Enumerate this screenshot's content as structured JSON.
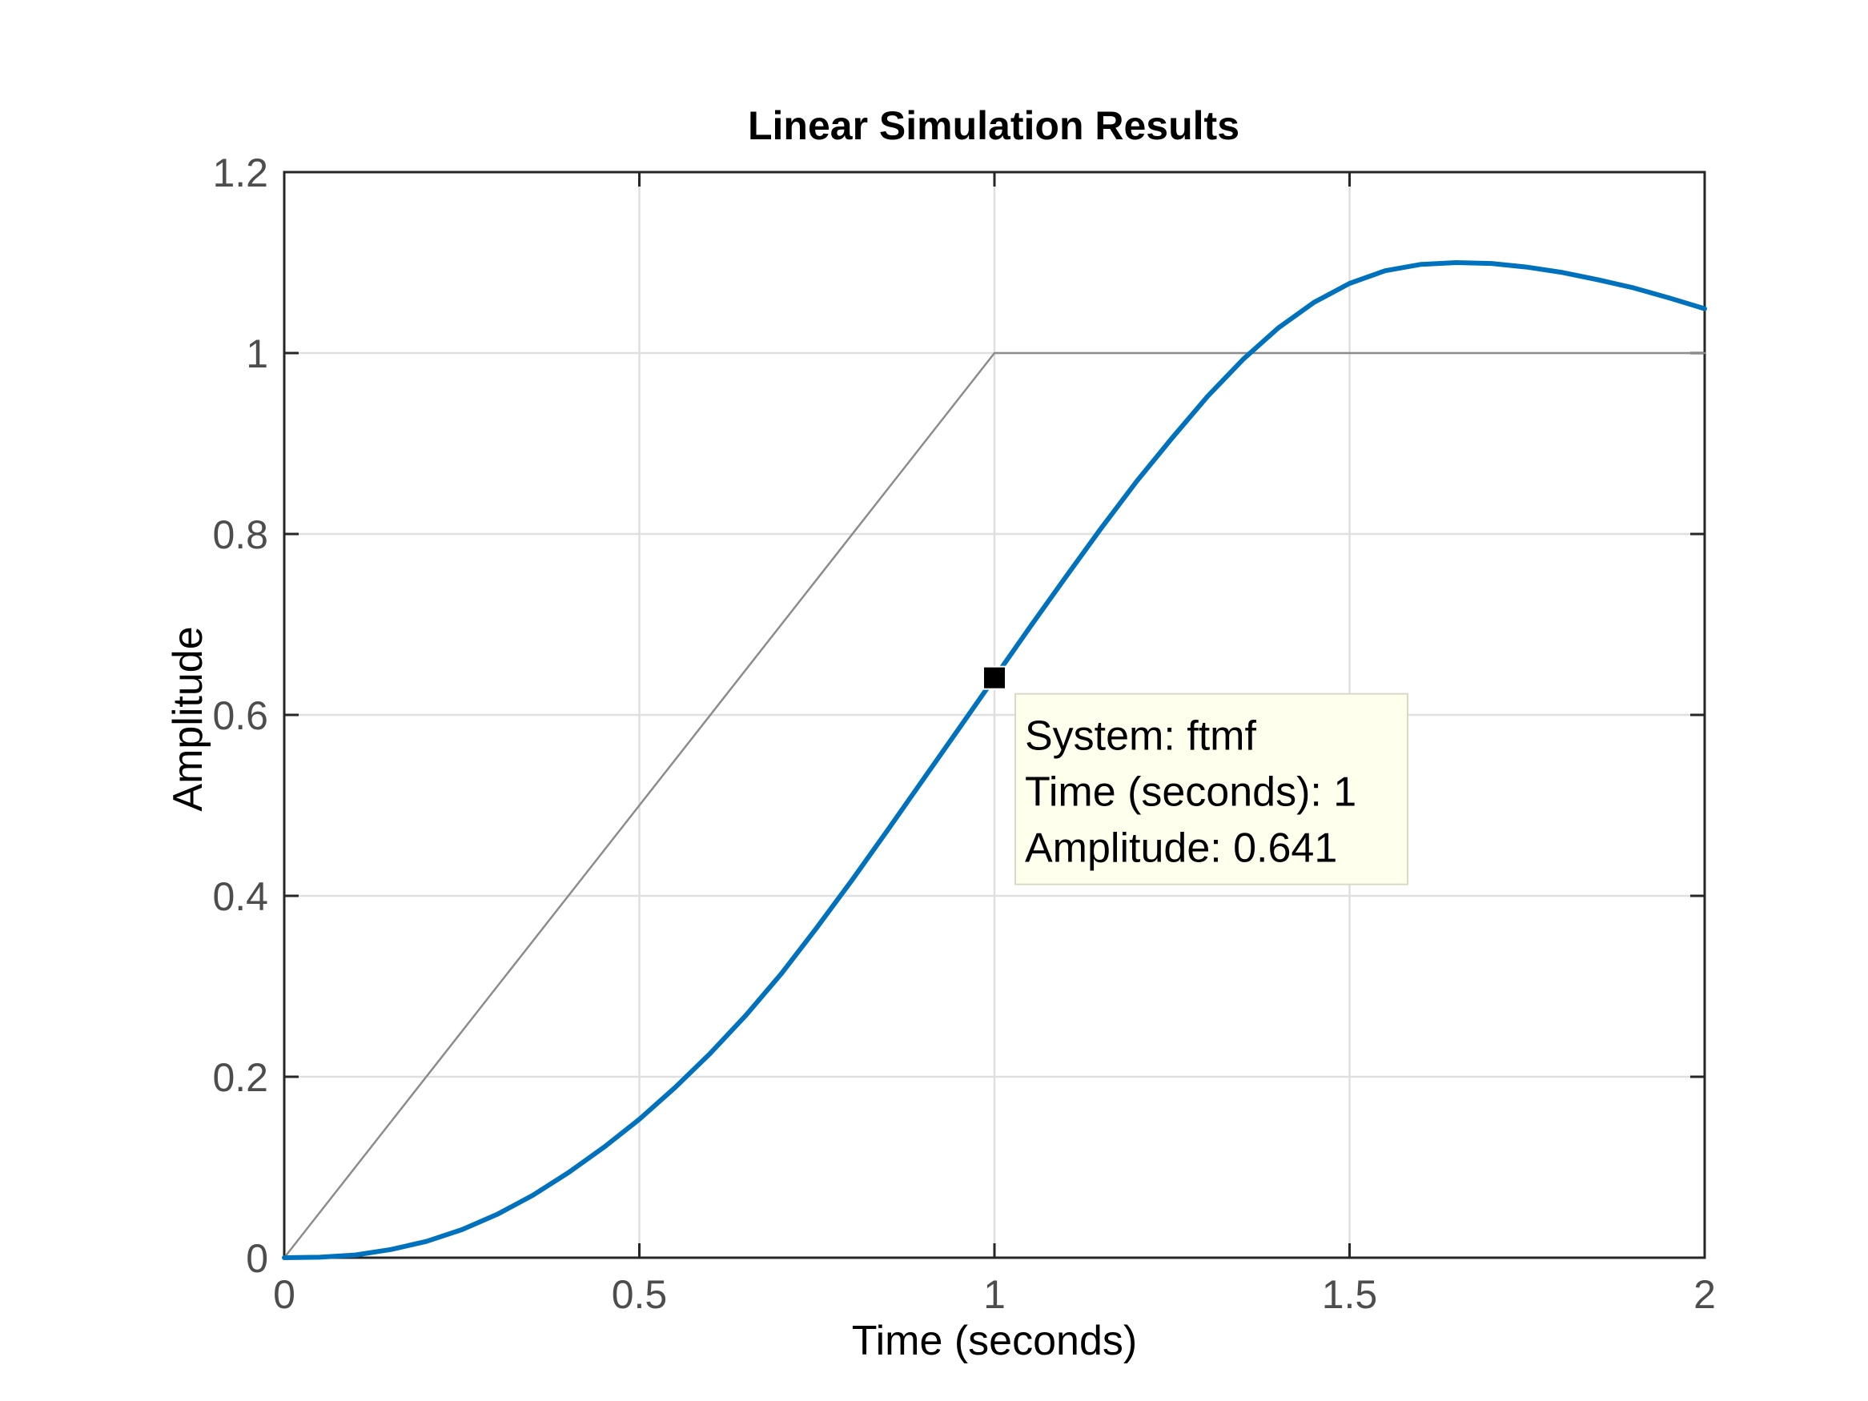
{
  "chart_data": {
    "type": "line",
    "title": "Linear Simulation Results",
    "xlabel": "Time (seconds)",
    "ylabel": "Amplitude",
    "xlim": [
      0,
      2
    ],
    "ylim": [
      0,
      1.2
    ],
    "xticks": [
      "0",
      "0.5",
      "1",
      "1.5",
      "2"
    ],
    "yticks": [
      "0",
      "0.2",
      "0.4",
      "0.6",
      "0.8",
      "1",
      "1.2"
    ],
    "grid": true,
    "series": [
      {
        "role": "input",
        "color": "#8c8c8c",
        "x": [
          0,
          1,
          2
        ],
        "y": [
          0,
          1,
          1
        ]
      },
      {
        "role": "response",
        "color": "#0072bd",
        "x": [
          0,
          0.05,
          0.1,
          0.15,
          0.2,
          0.25,
          0.3,
          0.35,
          0.4,
          0.45,
          0.5,
          0.55,
          0.6,
          0.65,
          0.7,
          0.75,
          0.8,
          0.85,
          0.9,
          0.95,
          1.0,
          1.05,
          1.1,
          1.15,
          1.2,
          1.25,
          1.3,
          1.35,
          1.4,
          1.45,
          1.5,
          1.55,
          1.6,
          1.65,
          1.7,
          1.75,
          1.8,
          1.85,
          1.9,
          1.95,
          2.0
        ],
        "y": [
          0,
          0.0005,
          0.003,
          0.009,
          0.018,
          0.031,
          0.048,
          0.069,
          0.094,
          0.122,
          0.153,
          0.188,
          0.226,
          0.268,
          0.314,
          0.365,
          0.418,
          0.473,
          0.529,
          0.585,
          0.641,
          0.697,
          0.752,
          0.806,
          0.858,
          0.906,
          0.952,
          0.993,
          1.028,
          1.056,
          1.077,
          1.091,
          1.098,
          1.1,
          1.099,
          1.095,
          1.089,
          1.081,
          1.072,
          1.061,
          1.049
        ]
      }
    ],
    "datatip": {
      "x": 1,
      "y": 0.641,
      "lines": [
        "System: ftmf",
        "Time (seconds): 1",
        "Amplitude: 0.641"
      ]
    }
  }
}
